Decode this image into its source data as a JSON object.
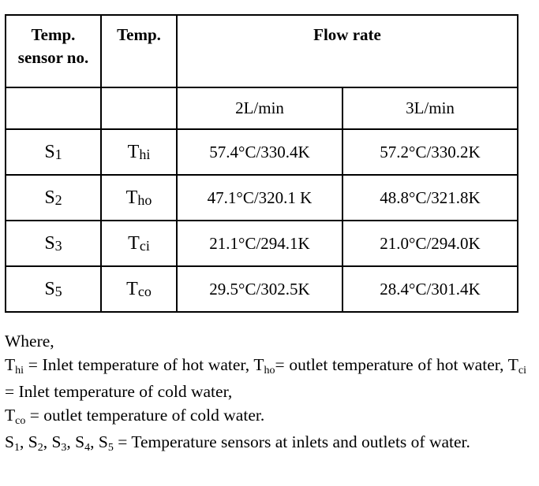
{
  "table": {
    "header": {
      "col1": [
        "Temp.",
        "sensor no."
      ],
      "col2": "Temp.",
      "flow_rate": "Flow rate",
      "rate1": "2L/min",
      "rate2": "3L/min"
    },
    "rows": [
      {
        "sensor": "S",
        "sensor_sub": "1",
        "temp": "T",
        "temp_sub": "hi",
        "v1": "57.4°C/330.4K",
        "v2": "57.2°C/330.2K"
      },
      {
        "sensor": "S",
        "sensor_sub": "2",
        "temp": "T",
        "temp_sub": "ho",
        "v1": "47.1°C/320.1 K",
        "v2": "48.8°C/321.8K"
      },
      {
        "sensor": "S",
        "sensor_sub": "3",
        "temp": "T",
        "temp_sub": "ci",
        "v1": "21.1°C/294.1K",
        "v2": "21.0°C/294.0K"
      },
      {
        "sensor": "S",
        "sensor_sub": "5",
        "temp": "T",
        "temp_sub": "co",
        "v1": "29.5°C/302.5K",
        "v2": "28.4°C/301.4K"
      }
    ]
  },
  "notes": {
    "where": "Where,",
    "hi_sym": "T",
    "hi_sub": "hi",
    "hi_text": " = Inlet temperature of hot water, ",
    "ho_sym": "T",
    "ho_sub": "ho",
    "ho_text": "= outlet temperature of hot water, ",
    "ci_sym": "T",
    "ci_sub": "ci",
    "ci_text": " = Inlet temperature of cold water,",
    "co_sym": "T",
    "co_sub": "co",
    "co_text": " = outlet temperature of cold water.",
    "s_sym": "S",
    "s_subs": [
      "1",
      "2",
      "3",
      "4",
      "5"
    ],
    "s_text": " = Temperature sensors at inlets and outlets of water."
  }
}
